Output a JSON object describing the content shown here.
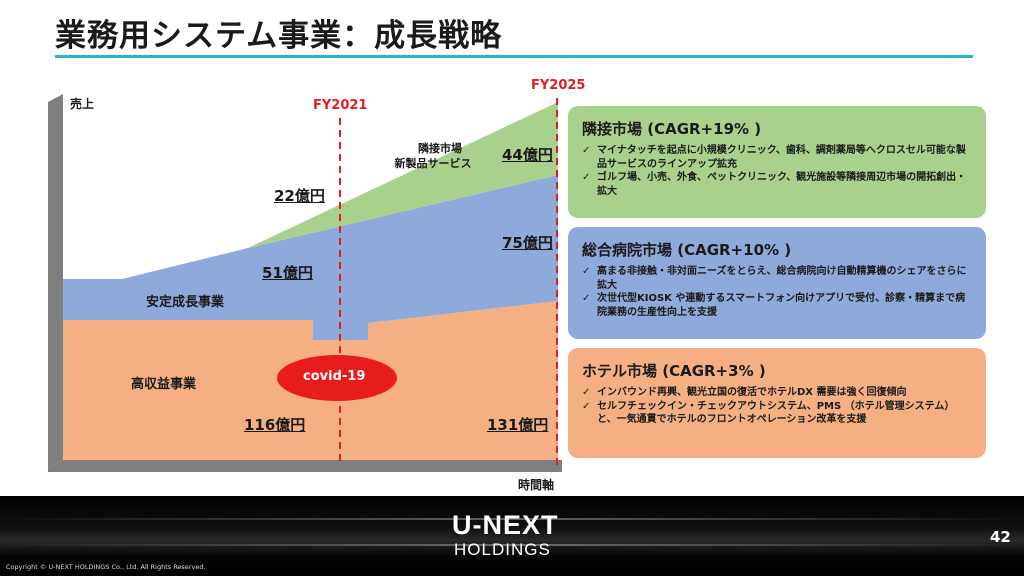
{
  "title": "業務用システム事業：成長戦略",
  "chart_data": {
    "type": "area",
    "y_axis_label": "売上",
    "x_axis_label": "時間軸",
    "markers": [
      "FY2021",
      "FY2025"
    ],
    "segments": [
      {
        "name": "高収益事業",
        "color": "#f4b083"
      },
      {
        "name": "安定成長事業",
        "color": "#8eaadb"
      },
      {
        "name": "隣接市場\n新製品サービス",
        "color": "#a9d18e"
      }
    ],
    "annotations": {
      "fy2021_adjacent": "22億円",
      "fy2021_stable": "51億円",
      "fy2021_high": "116億円",
      "fy2025_adjacent": "44億円",
      "fy2025_stable": "75億円",
      "fy2025_high": "131億円",
      "covid": "covid-19"
    }
  },
  "chart": {
    "ylabel": "売上",
    "xlabel": "時間軸",
    "fy2021": "FY2021",
    "fy2025": "FY2025",
    "adjacent_label_1": "隣接市場",
    "adjacent_label_2": "新製品サービス",
    "stable_label": "安定成長事業",
    "high_label": "高収益事業",
    "covid": "covid-19",
    "amt_22": "22億円",
    "amt_51": "51億円",
    "amt_116": "116億円",
    "amt_44": "44億円",
    "amt_75": "75億円",
    "amt_131": "131億円"
  },
  "boxes": [
    {
      "title": "隣接市場 (CAGR+19% )",
      "bullets": [
        "マイナタッチを起点に小規模クリニック、歯科、調剤薬局等へクロスセル可能な製品サービスのラインアップ拡充",
        "ゴルフ場、小売、外食、ペットクリニック、観光施設等隣接周辺市場の開拓創出・拡大"
      ]
    },
    {
      "title": "総合病院市場 (CAGR+10% )",
      "bullets": [
        "高まる非接触・非対面ニーズをとらえ、総合病院向け自動精算機のシェアをさらに拡大",
        "次世代型KIOSK や連動するスマートフォン向けアプリで受付、診察・精算まで病院業務の生産性向上を支援"
      ]
    },
    {
      "title": "ホテル市場 (CAGR+3% )",
      "bullets": [
        "インバウンド再興、観光立国の復活でホテルDX 需要は強く回復傾向",
        "セルフチェックイン・チェックアウトシステム、PMS （ホテル管理システム）と、一気通貫でホテルのフロントオペレーション改革を支援"
      ]
    }
  ],
  "check_mark": "✓",
  "footer": {
    "logo_top": "U-NEXT",
    "logo_bottom": "HOLDINGS",
    "page_number": "42",
    "copyright": "Copyright © U-NEXT HOLDINGS Co., Ltd. All Rights Reserved."
  }
}
